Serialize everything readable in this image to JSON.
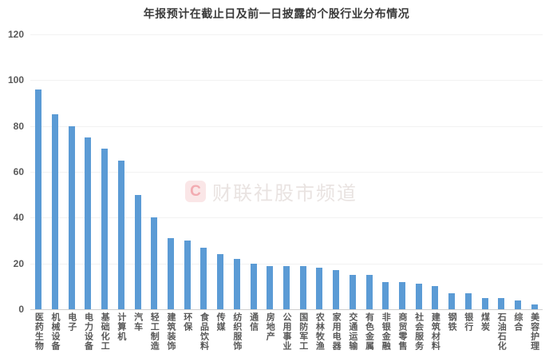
{
  "title": "年报预计在截止日及前一日披露的个股行业分布情况",
  "watermark": {
    "logo_letter": "C",
    "text": "财联社股市频道",
    "badge_bg": "#fae6e7",
    "badge_fg": "#f2abb1",
    "text_color": "#e9e3e1"
  },
  "colors": {
    "bar": "#5B9BD5",
    "gridline": "#f2f2f2",
    "axis_line": "#cfcfcf",
    "tick_label": "#595959",
    "title": "#3a3a3a"
  },
  "chart_data": {
    "type": "bar",
    "title": "年报预计在截止日及前一日披露的个股行业分布情况",
    "categories": [
      "医药生物",
      "机械设备",
      "电子",
      "电力设备",
      "基础化工",
      "计算机",
      "汽车",
      "轻工制造",
      "建筑装饰",
      "环保",
      "食品饮料",
      "传媒",
      "纺织服饰",
      "通信",
      "房地产",
      "公用事业",
      "国防军工",
      "农林牧渔",
      "家用电器",
      "交通运输",
      "有色金属",
      "非银金融",
      "商贸零售",
      "社会服务",
      "建筑材料",
      "钢铁",
      "银行",
      "煤炭",
      "石油石化",
      "综合",
      "美容护理"
    ],
    "values": [
      96,
      85,
      80,
      75,
      70,
      65,
      50,
      40,
      31,
      30,
      27,
      24,
      22,
      20,
      19,
      19,
      19,
      18,
      17,
      15,
      15,
      12,
      12,
      11,
      10,
      7,
      7,
      5,
      5,
      4,
      2
    ],
    "xlabel": "",
    "ylabel": "",
    "ylim": [
      0,
      120
    ],
    "yticks": [
      0,
      20,
      40,
      60,
      80,
      100,
      120
    ],
    "grid": true,
    "legend": false,
    "bar_color": "#5B9BD5"
  }
}
